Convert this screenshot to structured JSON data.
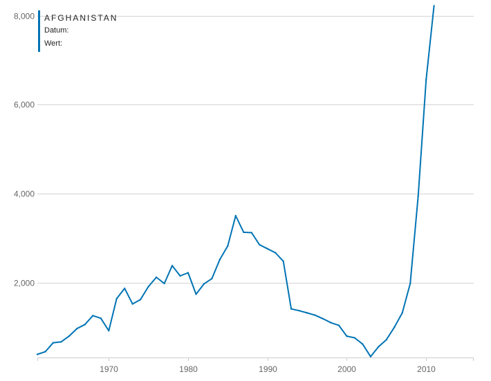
{
  "info": {
    "country": "AFGHANISTAN",
    "date_label": "Datum:",
    "value_label": "Wert:"
  },
  "colors": {
    "line": "#0073b4",
    "grid": "#d4d4d4",
    "axis": "#cccccc",
    "text": "#666666"
  },
  "chart_data": {
    "type": "line",
    "title": "",
    "xlabel": "",
    "ylabel": "",
    "xlim": [
      1961,
      2016
    ],
    "ylim": [
      330,
      8350
    ],
    "grid": true,
    "x_ticks": [
      1970,
      1980,
      1990,
      2000,
      2010
    ],
    "x_tick_labels": [
      "1970",
      "1980",
      "1990",
      "2000",
      "2010"
    ],
    "y_ticks": [
      2000,
      4000,
      6000,
      8000
    ],
    "y_tick_labels": [
      "2,000",
      "4,000",
      "6,000",
      "8,000"
    ],
    "series": [
      {
        "x": [
          1961,
          1962,
          1963,
          1964,
          1965,
          1966,
          1967,
          1968,
          1969,
          1970,
          1971,
          1972,
          1973,
          1974,
          1975,
          1976,
          1977,
          1978,
          1979,
          1980,
          1981,
          1982,
          1983,
          1984,
          1985,
          1986,
          1987,
          1988,
          1989,
          1990,
          1991,
          1992,
          1993,
          1994,
          1995,
          1996,
          1997,
          1998,
          1999,
          2000,
          2001,
          2002,
          2003,
          2004,
          2005,
          2006,
          2007,
          2008,
          2009,
          2010,
          2011
        ],
        "values": [
          400,
          460,
          660,
          680,
          810,
          980,
          1070,
          1270,
          1210,
          930,
          1650,
          1880,
          1530,
          1630,
          1920,
          2130,
          1990,
          2390,
          2160,
          2230,
          1750,
          1980,
          2100,
          2530,
          2830,
          3510,
          3140,
          3130,
          2860,
          2770,
          2680,
          2490,
          1420,
          1380,
          1330,
          1280,
          1200,
          1110,
          1050,
          810,
          770,
          630,
          350,
          570,
          730,
          1010,
          1330,
          1990,
          3950,
          6560,
          8220
        ]
      }
    ]
  }
}
